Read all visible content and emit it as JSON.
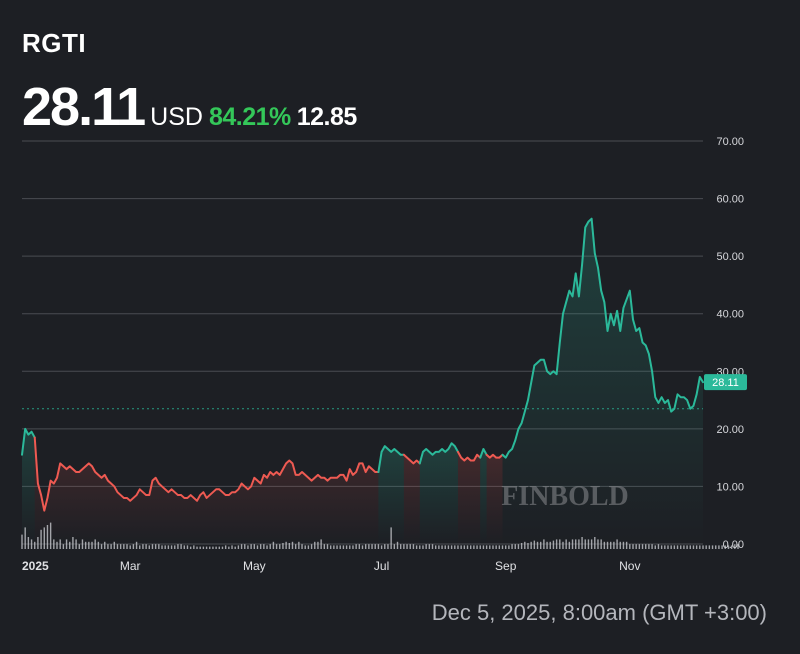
{
  "header": {
    "ticker": "RGTI",
    "price": "28.11",
    "currency": "USD",
    "change_pct": "84.21%",
    "change_abs": "12.85"
  },
  "footer": {
    "timestamp": "Dec 5, 2025, 8:00am (GMT +3:00)"
  },
  "watermark": "FINBOLD",
  "colors": {
    "up": "#2bb99a",
    "down": "#ee5a52",
    "change": "#34c759",
    "background": "#1d1f24"
  },
  "chart_data": {
    "type": "line",
    "ylim": [
      0,
      70
    ],
    "y_ticks": [
      "0.00",
      "10.00",
      "20.00",
      "30.00",
      "40.00",
      "50.00",
      "60.00",
      "70.00"
    ],
    "x_ticks": [
      {
        "label": "2025",
        "x": 0
      },
      {
        "label": "Mar",
        "x": 34
      },
      {
        "label": "May",
        "x": 73
      },
      {
        "label": "Jul",
        "x": 113
      },
      {
        "label": "Sep",
        "x": 152
      },
      {
        "label": "Nov",
        "x": 191
      }
    ],
    "reference_level": 23.5,
    "last_value": 28.11,
    "last_label": "28.11",
    "segments": [
      {
        "trend": "up",
        "points": [
          [
            0,
            15.5
          ],
          [
            1,
            20
          ],
          [
            2,
            19
          ],
          [
            3,
            19.5
          ],
          [
            4,
            18.5
          ]
        ]
      },
      {
        "trend": "down",
        "points": [
          [
            4,
            18.5
          ],
          [
            5,
            10.5
          ],
          [
            6,
            8.5
          ],
          [
            7,
            5.8
          ],
          [
            8,
            8
          ],
          [
            9,
            11
          ],
          [
            10,
            10.5
          ],
          [
            11,
            11.5
          ],
          [
            12,
            14
          ],
          [
            13,
            13.5
          ],
          [
            14,
            13
          ],
          [
            15,
            13.5
          ],
          [
            16,
            13
          ],
          [
            17,
            12.5
          ],
          [
            18,
            12.5
          ],
          [
            19,
            13
          ],
          [
            20,
            13.5
          ],
          [
            21,
            14
          ],
          [
            22,
            13.5
          ],
          [
            23,
            12.5
          ],
          [
            24,
            12
          ],
          [
            25,
            11.5
          ],
          [
            26,
            12
          ],
          [
            27,
            11
          ],
          [
            28,
            10.5
          ],
          [
            29,
            10
          ],
          [
            30,
            9
          ],
          [
            31,
            8.5
          ],
          [
            32,
            8
          ],
          [
            33,
            8
          ],
          [
            34,
            7.5
          ],
          [
            35,
            8
          ],
          [
            36,
            8.5
          ],
          [
            37,
            9.5
          ],
          [
            38,
            9
          ],
          [
            39,
            8.5
          ],
          [
            40,
            8.5
          ],
          [
            41,
            11
          ],
          [
            42,
            11.5
          ],
          [
            43,
            10.5
          ],
          [
            44,
            10
          ],
          [
            45,
            9.5
          ],
          [
            46,
            9
          ],
          [
            47,
            9.5
          ],
          [
            48,
            9
          ],
          [
            49,
            8.5
          ],
          [
            50,
            8.5
          ],
          [
            51,
            8
          ],
          [
            52,
            8
          ],
          [
            53,
            8.5
          ],
          [
            54,
            8
          ],
          [
            55,
            7.5
          ],
          [
            56,
            8.5
          ],
          [
            57,
            9
          ],
          [
            58,
            8
          ],
          [
            59,
            8.5
          ],
          [
            60,
            9
          ],
          [
            61,
            9.5
          ],
          [
            62,
            9.5
          ],
          [
            63,
            9
          ],
          [
            64,
            8.5
          ],
          [
            65,
            8.5
          ],
          [
            66,
            9
          ],
          [
            67,
            9
          ],
          [
            68,
            9.5
          ],
          [
            69,
            10.5
          ],
          [
            70,
            10
          ],
          [
            71,
            9.5
          ],
          [
            72,
            10
          ],
          [
            73,
            11.5
          ],
          [
            74,
            11
          ],
          [
            75,
            10.5
          ],
          [
            76,
            12
          ],
          [
            77,
            11.5
          ],
          [
            78,
            12.5
          ],
          [
            79,
            12
          ],
          [
            80,
            12.5
          ],
          [
            81,
            12
          ],
          [
            82,
            13
          ],
          [
            83,
            14
          ],
          [
            84,
            14.5
          ],
          [
            85,
            14
          ],
          [
            86,
            12
          ],
          [
            87,
            12
          ],
          [
            88,
            12.5
          ],
          [
            89,
            12
          ],
          [
            90,
            11.5
          ],
          [
            91,
            11
          ],
          [
            92,
            11.5
          ],
          [
            93,
            12
          ],
          [
            94,
            11.5
          ],
          [
            95,
            11.5
          ],
          [
            96,
            11
          ],
          [
            97,
            11.5
          ],
          [
            98,
            11.5
          ],
          [
            99,
            11.5
          ],
          [
            100,
            12
          ],
          [
            101,
            12
          ],
          [
            102,
            11
          ],
          [
            103,
            13
          ],
          [
            104,
            12
          ],
          [
            105,
            12.5
          ],
          [
            106,
            14
          ],
          [
            107,
            14
          ],
          [
            108,
            12.5
          ],
          [
            109,
            13.5
          ],
          [
            110,
            13
          ],
          [
            111,
            12.5
          ],
          [
            112,
            12.5
          ]
        ]
      },
      {
        "trend": "up",
        "points": [
          [
            112,
            12.5
          ],
          [
            113,
            16
          ],
          [
            114,
            17
          ],
          [
            115,
            16.5
          ],
          [
            116,
            16
          ],
          [
            117,
            16.5
          ],
          [
            118,
            16
          ],
          [
            119,
            15.5
          ],
          [
            120,
            15.5
          ]
        ]
      },
      {
        "trend": "down",
        "points": [
          [
            120,
            15.5
          ],
          [
            121,
            15
          ],
          [
            122,
            14.5
          ],
          [
            123,
            14
          ],
          [
            124,
            14.5
          ],
          [
            125,
            14
          ]
        ]
      },
      {
        "trend": "up",
        "points": [
          [
            125,
            14
          ],
          [
            126,
            16
          ],
          [
            127,
            16.5
          ],
          [
            128,
            16
          ],
          [
            129,
            15.5
          ],
          [
            130,
            16
          ],
          [
            131,
            16
          ],
          [
            132,
            16.5
          ],
          [
            133,
            16
          ],
          [
            134,
            16.5
          ],
          [
            135,
            17.5
          ],
          [
            136,
            17
          ],
          [
            137,
            16
          ]
        ]
      },
      {
        "trend": "down",
        "points": [
          [
            137,
            16
          ],
          [
            138,
            15
          ],
          [
            139,
            14.5
          ],
          [
            140,
            15
          ],
          [
            141,
            14.5
          ],
          [
            142,
            14.5
          ],
          [
            143,
            15.5
          ],
          [
            144,
            15
          ]
        ]
      },
      {
        "trend": "up",
        "points": [
          [
            144,
            15
          ],
          [
            145,
            16.5
          ],
          [
            146,
            15.5
          ]
        ]
      },
      {
        "trend": "down",
        "points": [
          [
            146,
            15.5
          ],
          [
            147,
            15
          ],
          [
            148,
            15.5
          ],
          [
            149,
            15
          ],
          [
            150,
            15
          ],
          [
            151,
            15.5
          ]
        ]
      },
      {
        "trend": "up",
        "points": [
          [
            151,
            15.5
          ],
          [
            152,
            15
          ],
          [
            153,
            16
          ],
          [
            154,
            16.5
          ],
          [
            155,
            18
          ],
          [
            156,
            20
          ],
          [
            157,
            21
          ],
          [
            158,
            23
          ],
          [
            159,
            25
          ],
          [
            160,
            28
          ],
          [
            161,
            31
          ],
          [
            162,
            31.5
          ],
          [
            163,
            32
          ],
          [
            164,
            32
          ],
          [
            165,
            30
          ],
          [
            166,
            29.5
          ],
          [
            167,
            30
          ],
          [
            168,
            29.5
          ],
          [
            169,
            35
          ],
          [
            170,
            40
          ],
          [
            171,
            42
          ],
          [
            172,
            44
          ],
          [
            173,
            43
          ],
          [
            174,
            47
          ],
          [
            175,
            43
          ],
          [
            176,
            48.5
          ],
          [
            177,
            55
          ],
          [
            178,
            56
          ],
          [
            179,
            56.5
          ],
          [
            180,
            50.5
          ],
          [
            181,
            48
          ],
          [
            182,
            44
          ],
          [
            183,
            42
          ],
          [
            184,
            37
          ],
          [
            185,
            40
          ],
          [
            186,
            38
          ],
          [
            187,
            40.5
          ],
          [
            188,
            37
          ],
          [
            189,
            41
          ],
          [
            190,
            42.5
          ],
          [
            191,
            44
          ],
          [
            192,
            39
          ],
          [
            193,
            37
          ],
          [
            194,
            37.5
          ],
          [
            195,
            35
          ],
          [
            196,
            34.5
          ],
          [
            197,
            33
          ],
          [
            198,
            30
          ],
          [
            199,
            25.5
          ],
          [
            200,
            24.5
          ],
          [
            201,
            25.5
          ],
          [
            202,
            24.5
          ],
          [
            203,
            25
          ],
          [
            204,
            23
          ],
          [
            205,
            23.5
          ],
          [
            206,
            26
          ],
          [
            207,
            25.5
          ],
          [
            208,
            25.5
          ],
          [
            209,
            25
          ],
          [
            210,
            23.5
          ],
          [
            211,
            24
          ],
          [
            212,
            26
          ],
          [
            213,
            29
          ],
          [
            214,
            28.11
          ]
        ]
      }
    ],
    "volume": [
      6,
      9,
      5,
      4,
      3,
      5,
      8,
      9,
      10,
      11,
      4,
      3,
      4,
      2,
      4,
      3,
      5,
      4,
      2,
      4,
      3,
      3,
      3,
      4,
      3,
      2,
      3,
      2,
      2,
      3,
      2,
      2,
      2,
      2,
      1.5,
      2,
      3,
      1.5,
      2,
      2,
      1.5,
      2,
      2,
      2,
      1.5,
      1.5,
      1.5,
      1.5,
      1.5,
      2,
      2,
      1.5,
      1.5,
      1,
      1.5,
      1,
      1,
      1,
      1,
      1,
      1,
      1,
      1,
      1,
      1.5,
      1,
      1.5,
      1,
      1.5,
      2,
      2,
      1.5,
      2,
      2,
      1.5,
      2,
      2,
      1.5,
      2,
      3,
      2,
      2,
      2.5,
      3,
      2.5,
      3,
      2,
      3,
      2,
      1.5,
      1.5,
      2,
      3,
      3,
      4,
      2,
      2,
      1.5,
      1.5,
      1.5,
      1.5,
      1.5,
      1.5,
      1.5,
      1.5,
      2,
      2,
      1.5,
      2,
      2,
      2,
      2,
      2,
      1.5,
      2,
      2,
      9,
      2,
      3,
      2,
      2,
      2,
      2,
      2,
      1.5,
      1.5,
      1.5,
      2,
      2,
      2,
      1.5,
      1.5,
      1.5,
      1.5,
      1.5,
      1.5,
      1.5,
      1.5,
      1.5,
      1.5,
      1.5,
      1.5,
      1.5,
      1.5,
      1.5,
      1.5,
      1.5,
      1.5,
      1.5,
      1.5,
      1.5,
      1.5,
      1.5,
      1.5,
      2,
      2,
      2,
      2.5,
      3,
      2.5,
      3,
      3.5,
      3,
      3,
      4,
      3,
      3,
      3.5,
      4,
      4,
      3,
      4,
      3,
      4,
      4,
      4,
      5,
      4,
      4,
      4,
      5,
      4,
      4,
      3,
      3,
      3,
      3,
      4,
      3,
      3,
      3,
      2,
      2,
      2,
      2,
      2,
      2,
      2,
      2,
      1.5,
      2,
      1.5,
      1.5,
      1.5,
      1.5,
      1.5,
      1.5,
      1.5,
      1.5,
      1.5,
      1.5,
      1.5,
      1.5,
      1.5,
      1.5,
      1.5,
      1.5,
      1.5,
      1.5,
      1.5,
      1.5,
      1.5,
      1.5,
      1.5,
      2,
      2
    ]
  }
}
